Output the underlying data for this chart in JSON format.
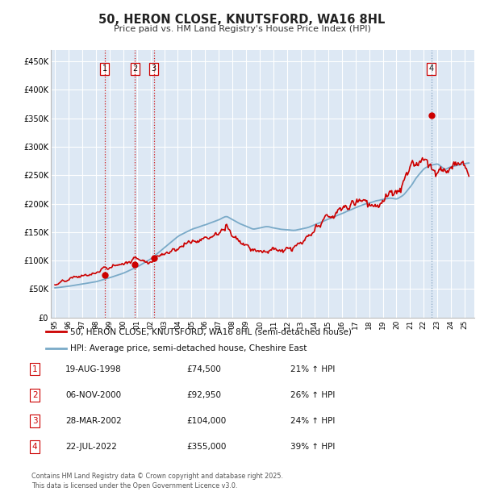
{
  "title": "50, HERON CLOSE, KNUTSFORD, WA16 8HL",
  "subtitle": "Price paid vs. HM Land Registry's House Price Index (HPI)",
  "legend_line1": "50, HERON CLOSE, KNUTSFORD, WA16 8HL (semi-detached house)",
  "legend_line2": "HPI: Average price, semi-detached house, Cheshire East",
  "footer": "Contains HM Land Registry data © Crown copyright and database right 2025.\nThis data is licensed under the Open Government Licence v3.0.",
  "transactions": [
    {
      "num": 1,
      "date": "19-AUG-1998",
      "price": 74500,
      "pct": "21%",
      "direction": "↑",
      "x_year": 1998.63
    },
    {
      "num": 2,
      "date": "06-NOV-2000",
      "price": 92950,
      "pct": "26%",
      "direction": "↑",
      "x_year": 2000.85
    },
    {
      "num": 3,
      "date": "28-MAR-2002",
      "price": 104000,
      "pct": "24%",
      "direction": "↑",
      "x_year": 2002.24
    },
    {
      "num": 4,
      "date": "22-JUL-2022",
      "price": 355000,
      "pct": "39%",
      "direction": "↑",
      "x_year": 2022.55
    }
  ],
  "red_color": "#cc0000",
  "blue_color": "#7aaac8",
  "vline_red": "#cc0000",
  "vline_blue": "#7799bb",
  "bg_color": "#dde8f4",
  "grid_color": "#ffffff",
  "ylim": [
    0,
    470000
  ],
  "yticks": [
    0,
    50000,
    100000,
    150000,
    200000,
    250000,
    300000,
    350000,
    400000,
    450000
  ],
  "xlim_start": 1994.7,
  "xlim_end": 2025.7,
  "xtick_years": [
    1995,
    1996,
    1997,
    1998,
    1999,
    2000,
    2001,
    2002,
    2003,
    2004,
    2005,
    2006,
    2007,
    2008,
    2009,
    2010,
    2011,
    2012,
    2013,
    2014,
    2015,
    2016,
    2017,
    2018,
    2019,
    2020,
    2021,
    2022,
    2023,
    2024,
    2025
  ]
}
